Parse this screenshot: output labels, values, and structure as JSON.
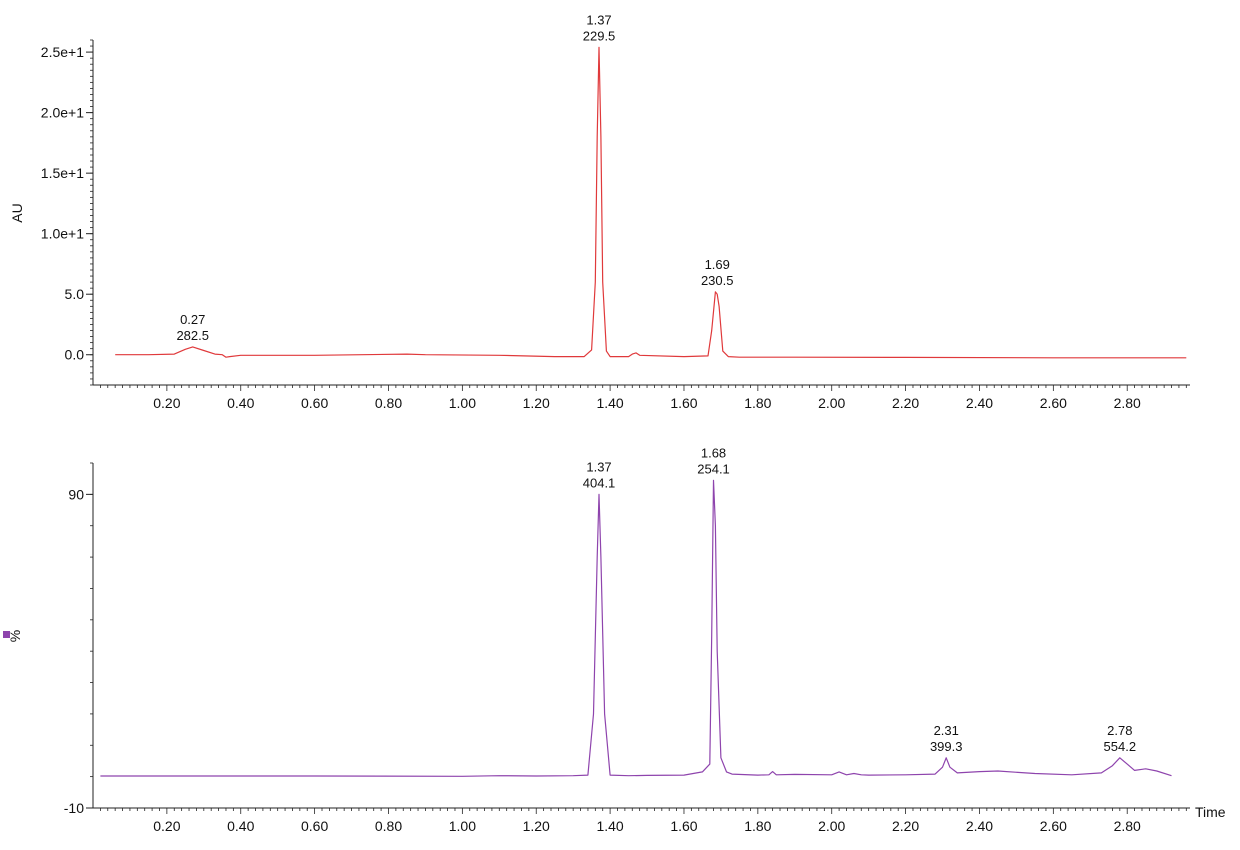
{
  "chart_data": [
    {
      "type": "line",
      "ylabel": "AU",
      "xlabel": "",
      "xlim": [
        0.0,
        2.97
      ],
      "ylim": [
        -2.5,
        26
      ],
      "x_ticks": [
        "0.20",
        "0.40",
        "0.60",
        "0.80",
        "1.00",
        "1.20",
        "1.40",
        "1.60",
        "1.80",
        "2.00",
        "2.20",
        "2.40",
        "2.60",
        "2.80"
      ],
      "y_ticks": [
        {
          "value": 0.0,
          "label": "0.0"
        },
        {
          "value": 5.0,
          "label": "5.0"
        },
        {
          "value": 10.0,
          "label": "1.0e+1"
        },
        {
          "value": 15.0,
          "label": "1.5e+1"
        },
        {
          "value": 20.0,
          "label": "2.0e+1"
        },
        {
          "value": 25.0,
          "label": "2.5e+1"
        }
      ],
      "grid": false,
      "color": "#e0393b",
      "series": [
        {
          "x": [
            0.06,
            0.15,
            0.22,
            0.25,
            0.27,
            0.3,
            0.33,
            0.35,
            0.36,
            0.37,
            0.4,
            0.6,
            0.85,
            0.9,
            1.1,
            1.25,
            1.33,
            1.35,
            1.36,
            1.365,
            1.37,
            1.375,
            1.38,
            1.39,
            1.4,
            1.45,
            1.46,
            1.47,
            1.48,
            1.6,
            1.665,
            1.675,
            1.685,
            1.69,
            1.695,
            1.705,
            1.72,
            1.75,
            1.9,
            2.2,
            2.6,
            2.8,
            2.96
          ],
          "y": [
            0.0,
            0.0,
            0.05,
            0.45,
            0.65,
            0.35,
            0.05,
            0.0,
            -0.2,
            -0.15,
            -0.05,
            -0.05,
            0.05,
            0.0,
            -0.05,
            -0.15,
            -0.15,
            0.4,
            6.0,
            18.0,
            25.4,
            18.0,
            6.0,
            0.3,
            -0.15,
            -0.15,
            0.05,
            0.15,
            -0.05,
            -0.15,
            -0.1,
            2.0,
            5.2,
            5.0,
            4.0,
            0.3,
            -0.15,
            -0.2,
            -0.2,
            -0.22,
            -0.25,
            -0.25,
            -0.25
          ]
        }
      ],
      "annotations": [
        {
          "x": 0.27,
          "y": 0.65,
          "line1": "0.27",
          "line2": "282.5"
        },
        {
          "x": 1.37,
          "y": 25.4,
          "line1": "1.37",
          "line2": "229.5"
        },
        {
          "x": 1.69,
          "y": 5.2,
          "line1": "1.69",
          "line2": "230.5"
        }
      ]
    },
    {
      "type": "line",
      "ylabel": "%",
      "xlabel": "Time",
      "xlim": [
        0.0,
        2.97
      ],
      "ylim": [
        -10,
        100
      ],
      "x_ticks": [
        "0.20",
        "0.40",
        "0.60",
        "0.80",
        "1.00",
        "1.20",
        "1.40",
        "1.60",
        "1.80",
        "2.00",
        "2.20",
        "2.40",
        "2.60",
        "2.80"
      ],
      "y_ticks": [
        {
          "value": -10,
          "label": "-10"
        },
        {
          "value": 90,
          "label": "90"
        }
      ],
      "grid": false,
      "color": "#8e44ad",
      "series": [
        {
          "x": [
            0.02,
            0.3,
            0.6,
            1.0,
            1.1,
            1.2,
            1.3,
            1.34,
            1.355,
            1.365,
            1.37,
            1.375,
            1.385,
            1.4,
            1.45,
            1.5,
            1.6,
            1.65,
            1.67,
            1.675,
            1.68,
            1.685,
            1.69,
            1.7,
            1.715,
            1.73,
            1.8,
            1.83,
            1.84,
            1.85,
            1.9,
            2.0,
            2.02,
            2.04,
            2.06,
            2.08,
            2.1,
            2.2,
            2.28,
            2.3,
            2.31,
            2.32,
            2.34,
            2.4,
            2.45,
            2.55,
            2.65,
            2.73,
            2.76,
            2.78,
            2.8,
            2.82,
            2.85,
            2.88,
            2.92
          ],
          "y": [
            0.2,
            0.2,
            0.2,
            0.1,
            0.3,
            0.2,
            0.3,
            0.5,
            20.0,
            70.0,
            90.0,
            70.0,
            20.0,
            0.5,
            0.3,
            0.4,
            0.5,
            1.5,
            4.0,
            45.0,
            94.5,
            80.0,
            40.0,
            6.0,
            1.5,
            0.8,
            0.5,
            0.6,
            1.6,
            0.6,
            0.7,
            0.6,
            1.5,
            0.6,
            1.0,
            0.6,
            0.5,
            0.6,
            0.8,
            3.0,
            6.0,
            3.0,
            1.2,
            1.6,
            1.8,
            1.0,
            0.6,
            1.2,
            3.5,
            6.0,
            4.0,
            2.0,
            2.5,
            1.8,
            0.3
          ]
        }
      ],
      "annotations": [
        {
          "x": 1.37,
          "y": 90.0,
          "line1": "1.37",
          "line2": "404.1"
        },
        {
          "x": 1.68,
          "y": 94.5,
          "line1": "1.68",
          "line2": "254.1"
        },
        {
          "x": 2.31,
          "y": 6.0,
          "line1": "2.31",
          "line2": "399.3"
        },
        {
          "x": 2.78,
          "y": 6.0,
          "line1": "2.78",
          "line2": "554.2"
        }
      ]
    }
  ]
}
